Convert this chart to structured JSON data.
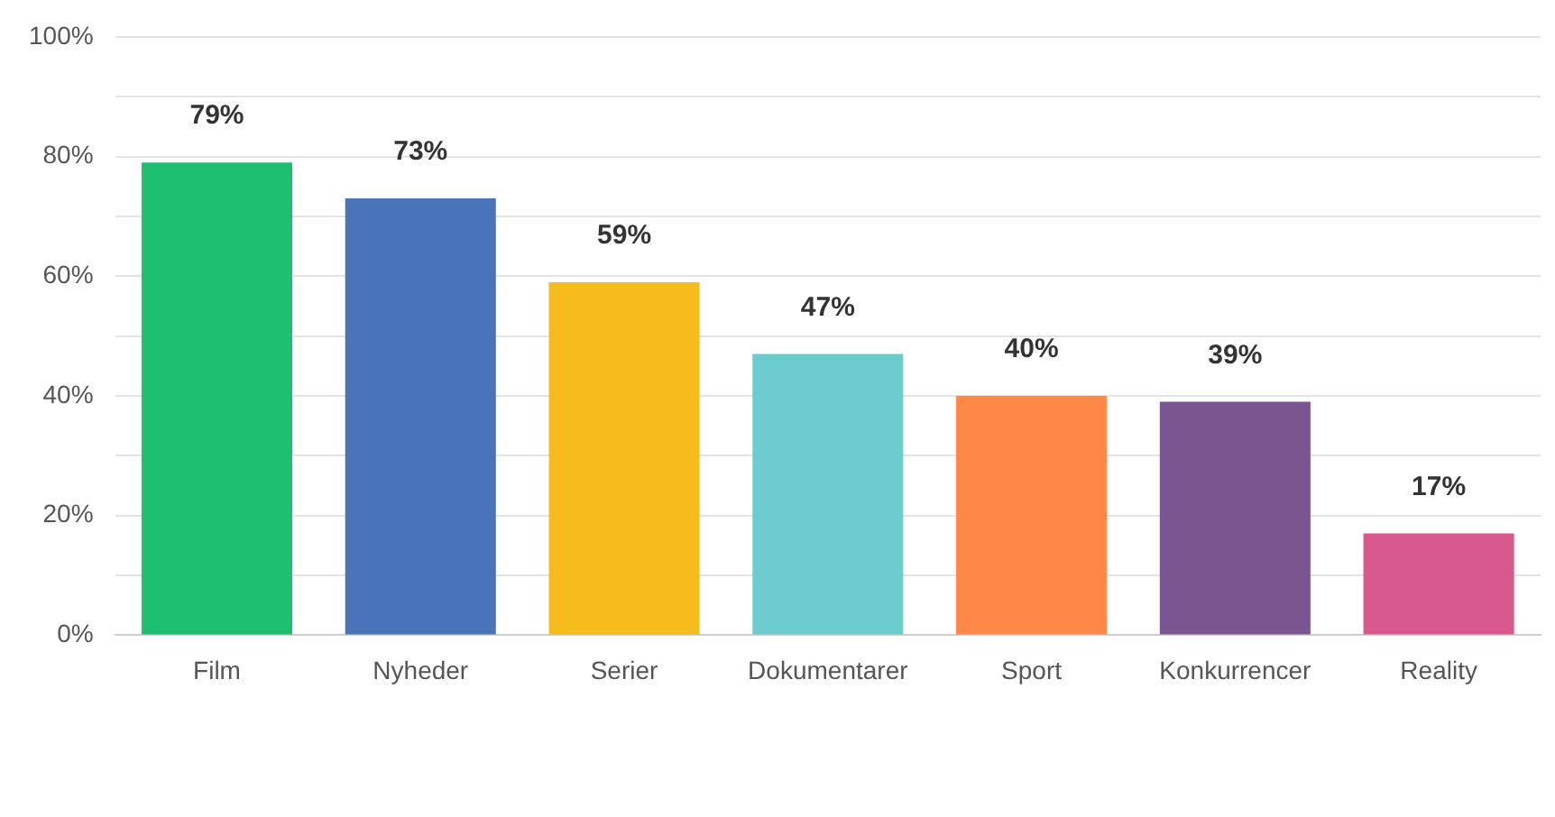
{
  "chart_data": {
    "type": "bar",
    "categories": [
      "Film",
      "Nyheder",
      "Serier",
      "Dokumentarer",
      "Sport",
      "Konkurrencer",
      "Reality"
    ],
    "values": [
      79,
      73,
      59,
      47,
      40,
      39,
      17
    ],
    "colors": [
      "#1fbf72",
      "#4a74b9",
      "#f6bc1b",
      "#6ccbcc",
      "#ff8849",
      "#7b5592",
      "#d8598d"
    ],
    "value_labels": [
      "79%",
      "73%",
      "59%",
      "47%",
      "40%",
      "39%",
      "17%"
    ],
    "ylim": [
      0,
      100
    ],
    "yticks": [
      {
        "value": 0,
        "label": "0%"
      },
      {
        "value": 10,
        "label": null
      },
      {
        "value": 20,
        "label": "20%"
      },
      {
        "value": 30,
        "label": null
      },
      {
        "value": 40,
        "label": "40%"
      },
      {
        "value": 50,
        "label": null
      },
      {
        "value": 60,
        "label": "60%"
      },
      {
        "value": 70,
        "label": null
      },
      {
        "value": 80,
        "label": "80%"
      },
      {
        "value": 90,
        "label": null
      },
      {
        "value": 100,
        "label": "100%"
      }
    ],
    "grid": "y"
  }
}
